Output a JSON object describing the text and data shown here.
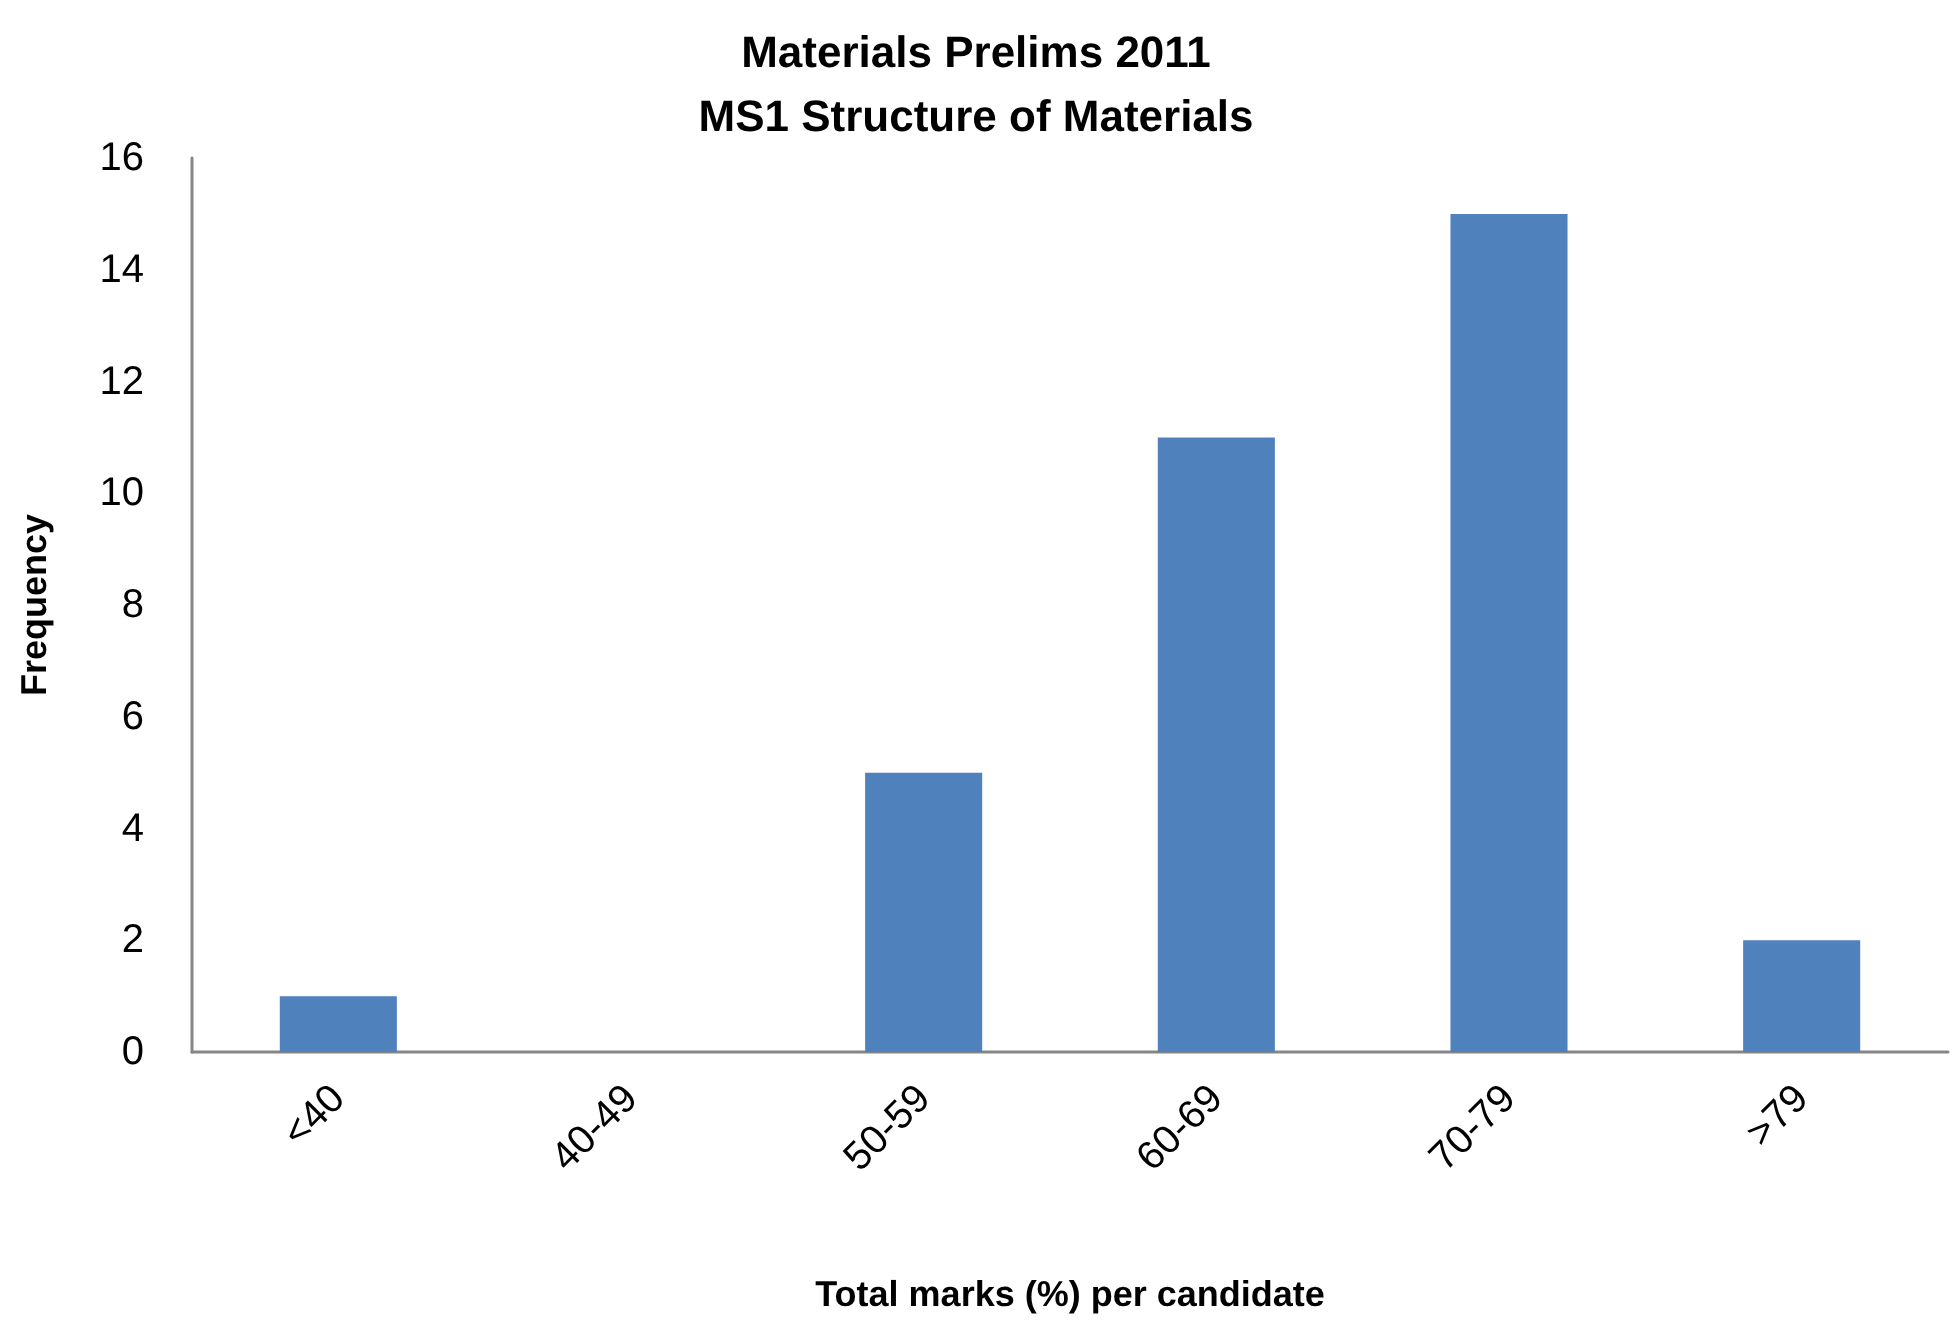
{
  "chart_data": {
    "type": "bar",
    "title": "Materials Prelims 2011\nMS1 Structure of Materials",
    "xlabel": "Total marks (%) per candidate",
    "ylabel": "Frequency",
    "categories": [
      "<40",
      "40-49",
      "50-59",
      "60-69",
      "70-79",
      ">79"
    ],
    "values": [
      1,
      0,
      5,
      11,
      15,
      2
    ],
    "color": "#4f81bd",
    "ylim": [
      0,
      16
    ],
    "yticks": [
      0,
      2,
      4,
      6,
      8,
      10,
      12,
      14,
      16
    ]
  }
}
